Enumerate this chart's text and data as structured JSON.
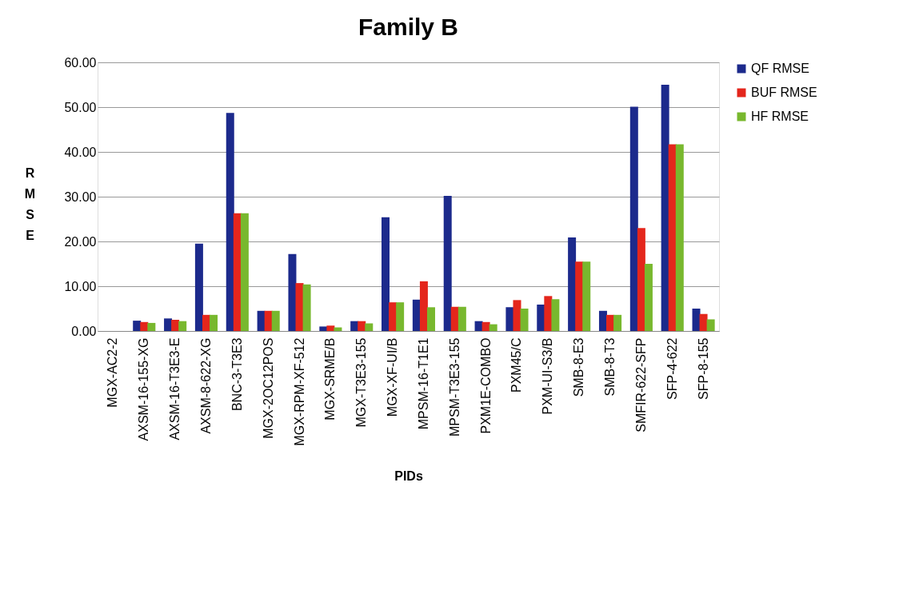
{
  "chart_data": {
    "type": "bar",
    "title": "Family B",
    "xlabel": "PIDs",
    "ylabel": "RMSE",
    "categories": [
      "MGX-AC2-2",
      "AXSM-16-155-XG",
      "AXSM-16-T3E3-E",
      "AXSM-8-622-XG",
      "BNC-3-T3E3",
      "MGX-2OC12POS",
      "MGX-RPM-XF-512",
      "MGX-SRME/B",
      "MGX-T3E3-155",
      "MGX-XF-UI/B",
      "MPSM-16-T1E1",
      "MPSM-T3E3-155",
      "PXM1E-COMBO",
      "PXM45/C",
      "PXM-UI-S3/B",
      "SMB-8-E3",
      "SMB-8-T3",
      "SMFIR-622-SFP",
      "SFP-4-622",
      "SFP-8-155"
    ],
    "series": [
      {
        "name": "QF RMSE",
        "color": "#1c2a8c",
        "values": [
          0,
          2.3,
          2.8,
          19.5,
          48.7,
          4.5,
          17.2,
          1.0,
          2.2,
          25.4,
          7.0,
          30.2,
          2.2,
          5.3,
          5.9,
          20.9,
          4.5,
          50.1,
          55.0,
          5.0
        ]
      },
      {
        "name": "BUF RMSE",
        "color": "#e4261c",
        "values": [
          0,
          2.0,
          2.5,
          3.6,
          26.3,
          4.5,
          10.7,
          1.2,
          2.2,
          6.4,
          11.1,
          5.4,
          2.0,
          6.9,
          7.8,
          15.5,
          3.6,
          23.0,
          41.7,
          3.8
        ]
      },
      {
        "name": "HF RMSE",
        "color": "#78b82e",
        "values": [
          0,
          1.8,
          2.2,
          3.6,
          26.3,
          4.5,
          10.4,
          0.8,
          1.7,
          6.4,
          5.3,
          5.4,
          1.5,
          5.0,
          7.1,
          15.5,
          3.6,
          15.0,
          41.7,
          2.6
        ]
      }
    ],
    "ylim": [
      0,
      60
    ],
    "yticks": [
      {
        "value": 0,
        "label": "0.00"
      },
      {
        "value": 10,
        "label": "10.00"
      },
      {
        "value": 20,
        "label": "20.00"
      },
      {
        "value": 30,
        "label": "30.00"
      },
      {
        "value": 40,
        "label": "40.00"
      },
      {
        "value": 50,
        "label": "50.00"
      },
      {
        "value": 60,
        "label": "60.00"
      }
    ],
    "grid": "y",
    "legend": "right"
  }
}
